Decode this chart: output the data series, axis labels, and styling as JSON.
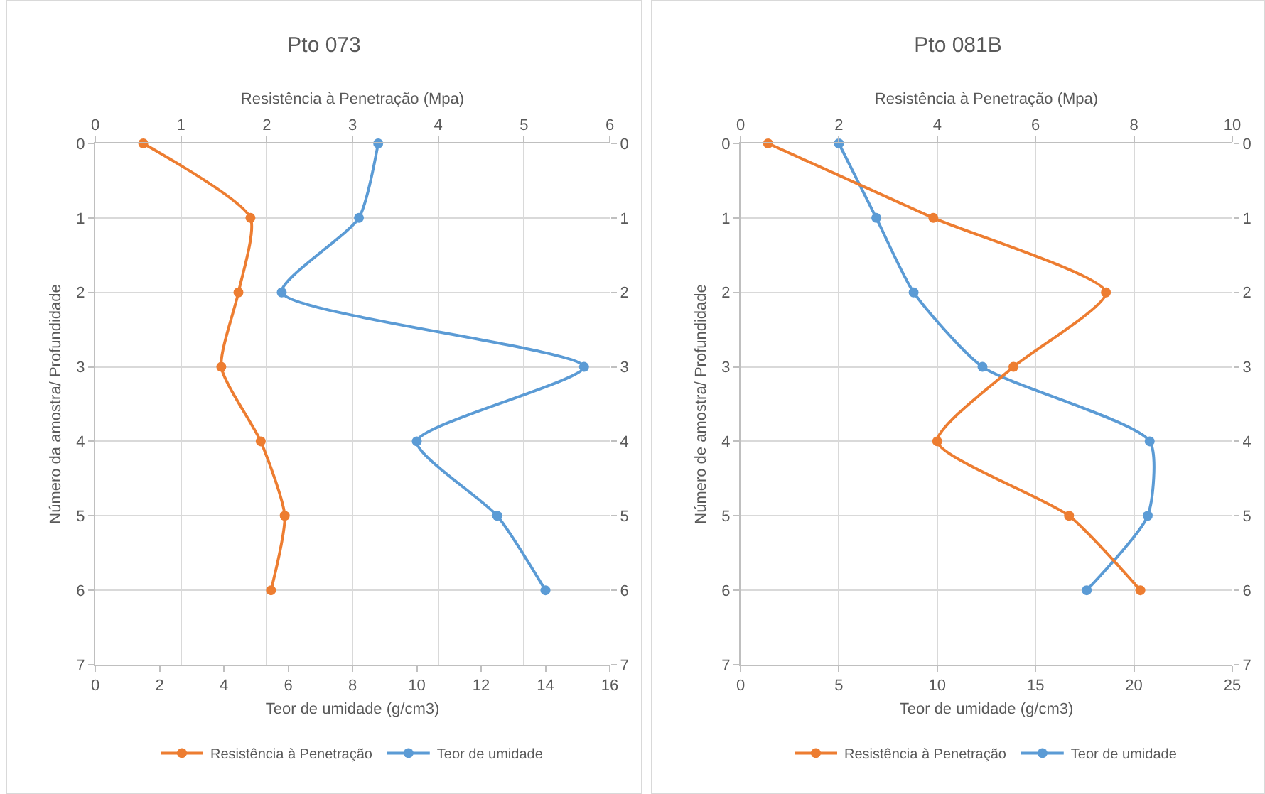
{
  "chart_data": [
    {
      "type": "line",
      "title": "Pto 073",
      "xlabel": "Teor de umidade (g/cm3)",
      "x2label": "Resistência à Penetração (Mpa)",
      "ylabel": "Número da amostra/ Profundidade",
      "xlim": [
        0,
        16
      ],
      "xticks": [
        0,
        2,
        4,
        6,
        8,
        10,
        12,
        14,
        16
      ],
      "x2lim": [
        0,
        6
      ],
      "x2ticks": [
        0,
        1,
        2,
        3,
        4,
        5,
        6
      ],
      "ylim": [
        7,
        0
      ],
      "yticks": [
        0,
        1,
        2,
        3,
        4,
        5,
        6,
        7
      ],
      "y2lim": [
        7,
        0
      ],
      "y2ticks": [
        0,
        1,
        2,
        3,
        4,
        5,
        6,
        7
      ],
      "grid": true,
      "legend": "bottom",
      "marker": "circle",
      "line_style": "solid",
      "series": [
        {
          "name": "Resistência à Penetração",
          "color": "#ed7d31",
          "axis": "x2",
          "x": [
            0.56,
            1.81,
            1.67,
            1.47,
            1.93,
            2.21,
            2.05
          ],
          "values": [
            0,
            1,
            2,
            3,
            4,
            5,
            6
          ]
        },
        {
          "name": "Teor de umidade",
          "color": "#5b9bd5",
          "x": [
            8.8,
            8.2,
            5.8,
            15.2,
            10.0,
            12.5,
            14.0
          ],
          "values": [
            0,
            1,
            2,
            3,
            4,
            5,
            6
          ]
        }
      ]
    },
    {
      "type": "line",
      "title": "Pto 081B",
      "xlabel": "Teor de umidade (g/cm3)",
      "x2label": "Resistência à Penetração (Mpa)",
      "ylabel": "Número de amostra/ Profundidade",
      "xlim": [
        0,
        25
      ],
      "xticks": [
        0,
        5,
        10,
        15,
        20,
        25
      ],
      "x2lim": [
        0,
        10
      ],
      "x2ticks": [
        0,
        2,
        4,
        6,
        8,
        10
      ],
      "ylim": [
        7,
        0
      ],
      "yticks": [
        0,
        1,
        2,
        3,
        4,
        5,
        6,
        7
      ],
      "y2lim": [
        7,
        0
      ],
      "y2ticks": [
        0,
        1,
        2,
        3,
        4,
        5,
        6,
        7
      ],
      "grid": true,
      "legend": "bottom",
      "marker": "circle",
      "line_style": "solid",
      "series": [
        {
          "name": "Resistência à Penetração",
          "color": "#ed7d31",
          "axis": "x2",
          "x": [
            0.56,
            3.92,
            7.43,
            5.55,
            4.0,
            6.68,
            8.13
          ],
          "values": [
            0,
            1,
            2,
            3,
            4,
            5,
            6
          ]
        },
        {
          "name": "Teor de umidade",
          "color": "#5b9bd5",
          "x": [
            5.0,
            6.9,
            8.8,
            12.3,
            20.8,
            20.7,
            17.6
          ],
          "values": [
            0,
            1,
            2,
            3,
            4,
            5,
            6
          ]
        }
      ]
    }
  ]
}
